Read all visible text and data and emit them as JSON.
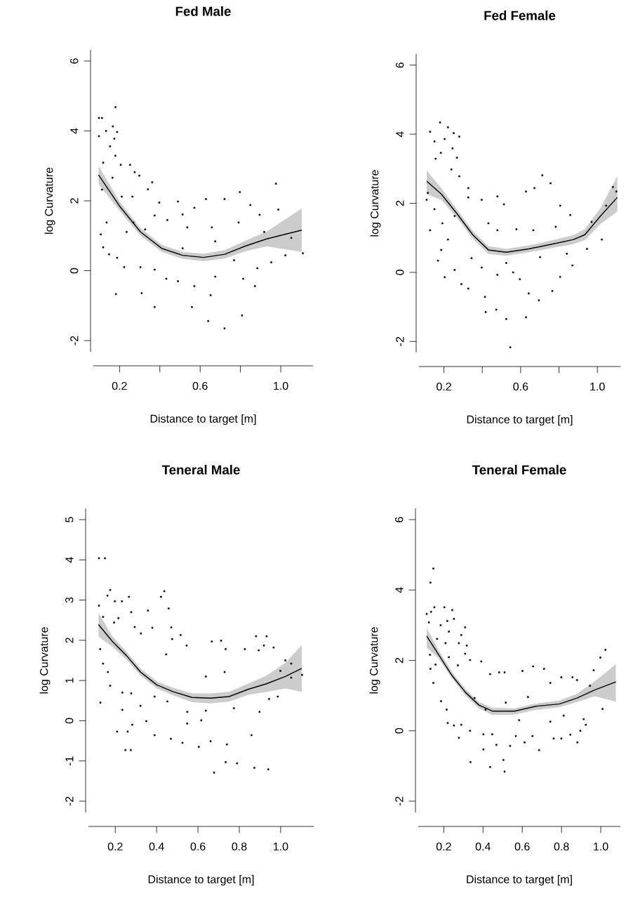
{
  "chart_data": [
    {
      "type": "scatter",
      "title": "Fed Male",
      "xlabel": "Distance to target [m]",
      "ylabel": "log Curvature",
      "xlim": [
        0.07,
        1.16
      ],
      "ylim": [
        -2.32,
        6.32
      ],
      "xticks": [
        {
          "value": 0.2,
          "label": "0.2"
        },
        {
          "value": 0.6,
          "label": "0.6"
        },
        {
          "value": 1.0,
          "label": "1.0"
        }
      ],
      "yticks": [
        -2,
        0,
        2,
        4,
        6
      ],
      "series": [
        {
          "type": "scatter",
          "color": "#000000",
          "marker": "square",
          "x": [
            0.18,
            0.098,
            0.113,
            0.167,
            0.133,
            0.188,
            0.098,
            0.174,
            0.153,
            0.179,
            0.119,
            0.206,
            0.252,
            0.275,
            0.165,
            0.298,
            0.362,
            0.341,
            0.113,
            0.211,
            0.264,
            0.976,
            0.797,
            0.629,
            0.721,
            0.49,
            0.397,
            0.849,
            0.988,
            0.571,
            0.374,
            0.513,
            0.895,
            0.107,
            0.119,
            0.148,
            0.269,
            0.327,
            0.437,
            0.536,
            0.658,
            0.791,
            0.918,
            0.675,
            1.052,
            1.11,
            1.023,
            0.188,
            0.304,
            0.374,
            0.432,
            0.49,
            0.571,
            0.675,
            0.814,
            0.872,
            0.721,
            0.64,
            0.808,
            0.374,
            0.559,
            0.182,
            0.31,
            0.652,
            0.884,
            0.953,
            0.223,
            0.513,
            0.768,
            0.235,
            0.136
          ],
          "values": [
            4.68,
            4.37,
            4.37,
            4.13,
            4.0,
            3.97,
            3.85,
            3.78,
            3.56,
            3.29,
            3.09,
            3.03,
            3.03,
            2.82,
            2.66,
            2.72,
            2.53,
            2.33,
            2.32,
            2.12,
            2.12,
            2.49,
            2.25,
            2.05,
            2.05,
            1.98,
            1.95,
            1.88,
            1.75,
            1.8,
            1.58,
            1.61,
            1.6,
            1.04,
            0.67,
            0.47,
            1.38,
            1.18,
            1.45,
            1.24,
            1.24,
            1.38,
            1.11,
            0.84,
            0.94,
            0.5,
            0.44,
            0.37,
            0.1,
            0.03,
            -0.23,
            -0.3,
            -0.44,
            -0.17,
            -0.23,
            -0.44,
            -1.65,
            -1.44,
            -1.28,
            -1.04,
            -1.04,
            -0.67,
            -0.64,
            -0.7,
            0.07,
            0.24,
            0.1,
            0.64,
            0.3,
            1.11,
            1.38
          ]
        },
        {
          "type": "line",
          "color": "#000000",
          "x": [
            0.096,
            0.2,
            0.304,
            0.409,
            0.513,
            0.617,
            0.722,
            0.826,
            0.93,
            1.104
          ],
          "values": [
            2.74,
            1.85,
            1.11,
            0.64,
            0.44,
            0.38,
            0.47,
            0.71,
            0.91,
            1.16
          ],
          "lower": [
            2.48,
            1.72,
            1.0,
            0.54,
            0.34,
            0.27,
            0.35,
            0.56,
            0.7,
            0.54
          ],
          "upper": [
            3.0,
            1.98,
            1.22,
            0.74,
            0.54,
            0.49,
            0.59,
            0.86,
            1.12,
            1.78
          ]
        }
      ]
    },
    {
      "type": "scatter",
      "title": "Fed Female",
      "xlabel": "Distance to target [m]",
      "ylabel": "log Curvature",
      "xlim": [
        0.07,
        1.12
      ],
      "ylim": [
        -2.32,
        6.32
      ],
      "xticks": [
        {
          "value": 0.2,
          "label": "0.2"
        },
        {
          "value": 0.6,
          "label": "0.6"
        },
        {
          "value": 1.0,
          "label": "1.0"
        }
      ],
      "yticks": [
        -2,
        0,
        2,
        4,
        6
      ],
      "series": [
        {
          "type": "scatter",
          "color": "#000000",
          "marker": "square",
          "x": [
            0.18,
            0.221,
            0.128,
            0.251,
            0.28,
            0.151,
            0.204,
            0.245,
            0.184,
            0.268,
            0.157,
            0.239,
            0.28,
            0.327,
            0.116,
            0.11,
            0.151,
            0.128,
            0.186,
            0.169,
            0.204,
            0.256,
            0.291,
            0.327,
            0.344,
            0.414,
            0.418,
            0.473,
            0.525,
            0.546,
            0.628,
            0.695,
            0.642,
            0.765,
            0.479,
            0.561,
            0.596,
            0.806,
            0.87,
            0.946,
            1.023,
            0.97,
            1.081,
            1.099,
            1.046,
            0.859,
            0.806,
            0.713,
            0.756,
            0.672,
            0.628,
            0.479,
            0.513,
            0.578,
            0.666,
            0.783,
            0.479,
            0.432,
            0.397,
            0.327,
            0.397,
            0.525,
            0.701,
            0.841,
            0.221,
            0.256,
            0.192
          ],
          "values": [
            4.34,
            4.2,
            4.07,
            4.03,
            3.93,
            3.79,
            3.86,
            3.59,
            3.46,
            3.32,
            3.29,
            2.98,
            2.78,
            2.44,
            2.3,
            2.1,
            1.83,
            1.22,
            0.65,
            0.34,
            -0.14,
            0.07,
            -0.34,
            -0.47,
            0.41,
            -0.71,
            -1.15,
            -1.08,
            -1.35,
            -2.17,
            -1.3,
            -0.81,
            -0.61,
            -0.54,
            -0.07,
            0.0,
            -0.2,
            -0.13,
            0.2,
            0.68,
            0.95,
            1.46,
            2.47,
            2.34,
            1.93,
            1.66,
            1.93,
            2.81,
            2.58,
            2.44,
            2.34,
            2.2,
            1.97,
            1.25,
            1.22,
            1.32,
            1.22,
            1.42,
            2.1,
            2.17,
            0.14,
            0.27,
            0.44,
            0.54,
            0.95,
            1.63,
            1.42
          ]
        },
        {
          "type": "line",
          "color": "#000000",
          "x": [
            0.11,
            0.186,
            0.268,
            0.35,
            0.432,
            0.525,
            0.642,
            0.759,
            0.876,
            0.935,
            1.016,
            1.104
          ],
          "values": [
            2.64,
            2.27,
            1.7,
            1.09,
            0.65,
            0.58,
            0.68,
            0.81,
            0.95,
            1.09,
            1.63,
            2.17
          ],
          "lower": [
            2.27,
            2.1,
            1.58,
            0.98,
            0.53,
            0.48,
            0.58,
            0.7,
            0.82,
            0.93,
            1.4,
            1.76
          ],
          "upper": [
            2.95,
            2.44,
            1.82,
            1.2,
            0.76,
            0.68,
            0.78,
            0.92,
            1.08,
            1.25,
            1.86,
            2.78
          ]
        }
      ]
    },
    {
      "type": "scatter",
      "title": "Teneral Male",
      "xlabel": "Distance to target [m]",
      "ylabel": "log Curvature",
      "xlim": [
        0.07,
        1.16
      ],
      "ylim": [
        -2.28,
        5.28
      ],
      "xticks": [
        {
          "value": 0.2,
          "label": "0.2"
        },
        {
          "value": 0.4,
          "label": "0.4"
        },
        {
          "value": 0.6,
          "label": "0.6"
        },
        {
          "value": 0.8,
          "label": "0.8"
        },
        {
          "value": 1.0,
          "label": "1.0"
        }
      ],
      "yticks": [
        -2,
        -1,
        0,
        1,
        2,
        3,
        4,
        5
      ],
      "series": [
        {
          "type": "scatter",
          "color": "#000000",
          "marker": "square",
          "x": [
            0.121,
            0.15,
            0.175,
            0.162,
            0.437,
            0.421,
            0.198,
            0.232,
            0.266,
            0.121,
            0.458,
            0.277,
            0.358,
            0.215,
            0.141,
            0.194,
            0.294,
            0.379,
            0.471,
            0.324,
            0.516,
            0.475,
            0.712,
            0.667,
            0.881,
            0.932,
            0.919,
            0.966,
            0.734,
            0.827,
            0.894,
            0.545,
            0.127,
            0.446,
            1.023,
            1.051,
            0.999,
            1.104,
            1.051,
            0.141,
            0.164,
            0.175,
            0.128,
            0.234,
            0.234,
            0.277,
            0.322,
            0.39,
            0.452,
            0.548,
            0.638,
            0.774,
            0.898,
            0.944,
            0.986,
            0.638,
            0.729,
            0.209,
            0.26,
            0.282,
            0.35,
            0.39,
            0.469,
            0.525,
            0.604,
            0.661,
            0.74,
            0.859,
            0.249,
            0.275,
            0.734,
            0.789,
            0.873,
            0.94,
            0.678,
            0.548,
            0.616
          ],
          "values": [
            4.04,
            4.04,
            3.25,
            3.11,
            3.22,
            3.08,
            2.97,
            2.97,
            3.08,
            2.86,
            2.79,
            2.7,
            2.74,
            2.55,
            2.58,
            2.44,
            2.33,
            2.31,
            2.32,
            2.17,
            2.13,
            2.03,
            1.99,
            1.97,
            2.1,
            2.1,
            1.87,
            1.82,
            1.78,
            1.78,
            1.75,
            1.87,
            1.78,
            1.65,
            1.5,
            1.42,
            1.24,
            1.14,
            1.07,
            1.42,
            1.21,
            0.87,
            0.45,
            0.7,
            0.27,
            0.68,
            0.37,
            0.6,
            0.48,
            0.22,
            0.25,
            0.31,
            0.22,
            0.54,
            0.6,
            1.1,
            1.21,
            -0.27,
            -0.27,
            -0.1,
            -0.01,
            -0.36,
            -0.45,
            -0.55,
            -0.65,
            -0.51,
            -0.59,
            -0.36,
            -0.73,
            -0.73,
            -1.03,
            -1.06,
            -1.17,
            -1.21,
            -1.29,
            -0.07,
            0.01
          ]
        },
        {
          "type": "line",
          "color": "#000000",
          "x": [
            0.119,
            0.186,
            0.254,
            0.322,
            0.401,
            0.48,
            0.571,
            0.661,
            0.751,
            0.842,
            0.932,
            1.023,
            1.102
          ],
          "values": [
            2.39,
            1.97,
            1.62,
            1.21,
            0.89,
            0.72,
            0.58,
            0.56,
            0.6,
            0.78,
            0.92,
            1.1,
            1.3
          ],
          "lower": [
            2.09,
            1.84,
            1.52,
            1.12,
            0.8,
            0.63,
            0.46,
            0.43,
            0.48,
            0.64,
            0.72,
            0.8,
            0.72
          ],
          "upper": [
            2.68,
            2.1,
            1.72,
            1.3,
            0.98,
            0.82,
            0.68,
            0.68,
            0.72,
            0.92,
            1.12,
            1.44,
            1.88
          ]
        }
      ]
    },
    {
      "type": "scatter",
      "title": "Teneral Female",
      "xlabel": "Distance to target [m]",
      "ylabel": "log Curvature",
      "xlim": [
        0.07,
        1.1
      ],
      "ylim": [
        -2.32,
        6.32
      ],
      "xticks": [
        {
          "value": 0.2,
          "label": "0.2"
        },
        {
          "value": 0.4,
          "label": "0.4"
        },
        {
          "value": 0.6,
          "label": "0.6"
        },
        {
          "value": 0.8,
          "label": "0.8"
        },
        {
          "value": 1.0,
          "label": "1.0"
        }
      ],
      "yticks": [
        -2,
        0,
        2,
        4,
        6
      ],
      "series": [
        {
          "type": "scatter",
          "color": "#000000",
          "marker": "square",
          "x": [
            0.147,
            0.132,
            0.113,
            0.135,
            0.152,
            0.203,
            0.243,
            0.124,
            0.218,
            0.252,
            0.184,
            0.309,
            0.226,
            0.289,
            0.166,
            0.209,
            0.277,
            0.317,
            0.309,
            0.13,
            0.226,
            0.334,
            0.391,
            0.158,
            0.272,
            0.132,
            1.024,
            0.998,
            0.964,
            1.009,
            0.945,
            0.655,
            0.711,
            0.601,
            0.482,
            0.51,
            0.436,
            0.799,
            0.856,
            0.879,
            0.743,
            0.147,
            0.186,
            0.215,
            0.22,
            0.252,
            0.277,
            0.289,
            0.334,
            0.402,
            0.447,
            0.468,
            0.402,
            0.336,
            0.436,
            0.51,
            0.504,
            0.538,
            0.567,
            0.612,
            0.686,
            0.652,
            0.76,
            0.799,
            0.845,
            0.881,
            0.896,
            0.924,
            0.913,
            0.357,
            0.413,
            0.516,
            0.629,
            0.743,
            0.811,
            0.584
          ],
          "values": [
            4.61,
            4.21,
            3.32,
            3.38,
            3.51,
            3.51,
            3.43,
            3.08,
            3.12,
            3.18,
            3.0,
            2.94,
            2.82,
            2.72,
            2.61,
            2.49,
            2.49,
            2.42,
            2.19,
            2.16,
            2.09,
            2.01,
            1.97,
            1.88,
            1.86,
            1.76,
            2.3,
            2.08,
            1.72,
            0.62,
            1.28,
            1.83,
            1.76,
            1.7,
            1.66,
            1.66,
            1.61,
            1.52,
            1.52,
            1.44,
            1.36,
            1.36,
            0.84,
            0.6,
            0.22,
            0.15,
            -0.2,
            0.17,
            0.0,
            -0.1,
            -0.1,
            -0.4,
            -0.53,
            -0.89,
            -1.03,
            -1.16,
            -0.83,
            -0.43,
            -0.15,
            -0.33,
            -0.55,
            -0.15,
            -0.22,
            -0.22,
            -0.11,
            -0.33,
            0.0,
            0.17,
            0.33,
            0.93,
            0.6,
            0.8,
            0.96,
            0.26,
            0.43,
            0.3
          ]
        },
        {
          "type": "line",
          "color": "#000000",
          "x": [
            0.113,
            0.175,
            0.243,
            0.311,
            0.379,
            0.447,
            0.561,
            0.674,
            0.788,
            0.879,
            0.969,
            1.077
          ],
          "values": [
            2.69,
            2.15,
            1.56,
            1.09,
            0.73,
            0.56,
            0.56,
            0.7,
            0.76,
            0.93,
            1.16,
            1.39
          ],
          "lower": [
            2.37,
            2.05,
            1.48,
            1.0,
            0.64,
            0.45,
            0.46,
            0.6,
            0.67,
            0.82,
            0.98,
            0.83
          ],
          "upper": [
            2.92,
            2.28,
            1.66,
            1.18,
            0.82,
            0.66,
            0.64,
            0.78,
            0.86,
            1.05,
            1.4,
            1.89
          ]
        }
      ]
    }
  ]
}
